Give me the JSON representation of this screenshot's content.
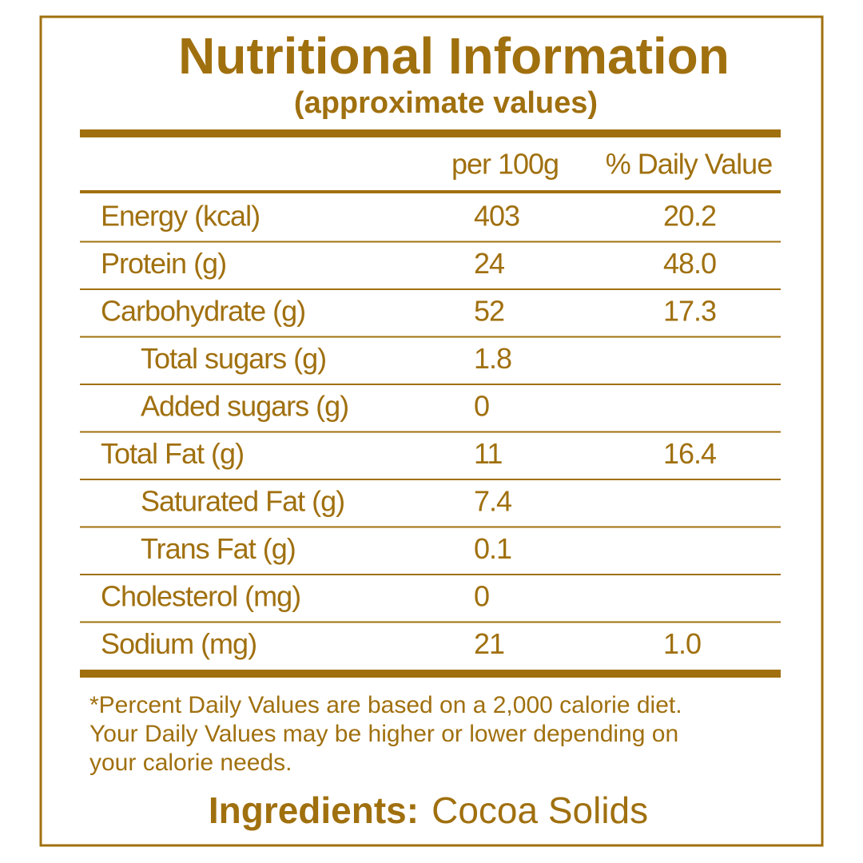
{
  "header": {
    "title": "Nutritional Information",
    "subtitle": "(approximate values)"
  },
  "table": {
    "columns": [
      "per 100g",
      "% Daily Value"
    ],
    "rows": [
      {
        "label": "Energy (kcal)",
        "per_100g": "403",
        "daily_value": "20.2"
      },
      {
        "label": "Protein (g)",
        "per_100g": "24",
        "daily_value": "48.0"
      },
      {
        "label": "Carbohydrate (g)",
        "per_100g": "52",
        "daily_value": "17.3",
        "children": [
          {
            "label": "Total sugars (g)",
            "per_100g": "1.8"
          },
          {
            "label": "Added sugars (g)",
            "per_100g": "0"
          }
        ]
      },
      {
        "label": "Total Fat (g)",
        "per_100g": "11",
        "daily_value": "16.4",
        "children": [
          {
            "label": "Saturated Fat (g)",
            "per_100g": "7.4"
          },
          {
            "label": "Trans Fat (g)",
            "per_100g": "0.1"
          }
        ]
      },
      {
        "label": "Cholesterol (mg)",
        "per_100g": "0"
      },
      {
        "label": "Sodium (mg)",
        "per_100g": "21",
        "daily_value": "1.0"
      }
    ]
  },
  "footnote": [
    "*Percent Daily Values are based on a 2,000 calorie diet.",
    "Your Daily Values may be higher or lower depending on",
    "your calorie needs."
  ],
  "ingredients": {
    "label": "Ingredients:",
    "value": "Cocoa Solids"
  }
}
